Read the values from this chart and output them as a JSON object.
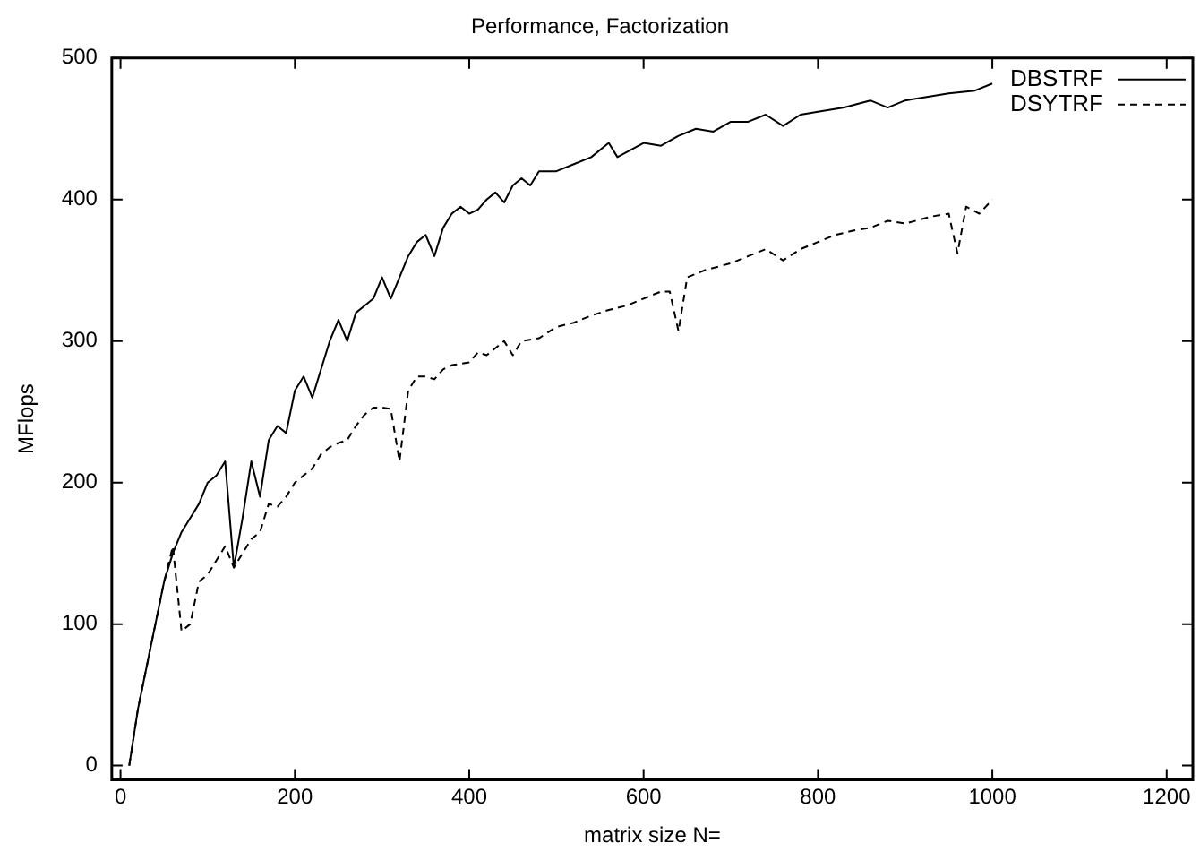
{
  "chart_data": {
    "type": "line",
    "title": "Performance, Factorization",
    "xlabel": "matrix size N=",
    "ylabel": "MFlops",
    "xlim": [
      -10,
      1230
    ],
    "xticks": [
      0,
      200,
      400,
      600,
      800,
      1000,
      1200
    ],
    "ylim": [
      -10,
      500
    ],
    "yticks": [
      0,
      100,
      200,
      300,
      400,
      500
    ],
    "grid": false,
    "legend": "top right",
    "marker": "none",
    "series": [
      {
        "name": "DBSTRF",
        "color": "#000000",
        "line_style": "solid",
        "x": [
          10,
          20,
          30,
          40,
          50,
          60,
          70,
          80,
          90,
          100,
          110,
          120,
          130,
          140,
          150,
          160,
          170,
          180,
          190,
          200,
          210,
          220,
          230,
          240,
          250,
          260,
          270,
          280,
          290,
          300,
          310,
          320,
          330,
          340,
          350,
          360,
          370,
          380,
          390,
          400,
          410,
          420,
          430,
          440,
          450,
          460,
          470,
          480,
          500,
          520,
          540,
          560,
          570,
          600,
          620,
          640,
          660,
          680,
          700,
          720,
          740,
          760,
          780,
          800,
          830,
          860,
          880,
          900,
          920,
          950,
          980,
          1000
        ],
        "values": [
          0,
          40,
          70,
          100,
          130,
          150,
          165,
          175,
          185,
          200,
          205,
          215,
          140,
          175,
          215,
          190,
          230,
          240,
          235,
          265,
          275,
          260,
          280,
          300,
          315,
          300,
          320,
          325,
          330,
          345,
          330,
          345,
          360,
          370,
          375,
          360,
          380,
          390,
          395,
          390,
          393,
          400,
          405,
          398,
          410,
          415,
          410,
          420,
          420,
          425,
          430,
          440,
          430,
          440,
          438,
          445,
          450,
          448,
          455,
          455,
          460,
          452,
          460,
          462,
          465,
          470,
          465,
          470,
          472,
          475,
          477,
          482
        ]
      },
      {
        "name": "DSYTRF",
        "color": "#000000",
        "line_style": "dashed",
        "x": [
          10,
          20,
          30,
          40,
          50,
          60,
          70,
          80,
          90,
          100,
          110,
          120,
          130,
          140,
          150,
          160,
          170,
          180,
          190,
          200,
          210,
          220,
          230,
          240,
          250,
          260,
          270,
          280,
          290,
          300,
          310,
          320,
          330,
          340,
          350,
          360,
          370,
          380,
          400,
          410,
          420,
          440,
          450,
          460,
          480,
          500,
          520,
          540,
          560,
          580,
          600,
          620,
          630,
          640,
          650,
          670,
          700,
          720,
          740,
          760,
          780,
          800,
          820,
          840,
          860,
          880,
          900,
          930,
          950,
          960,
          970,
          985,
          1000
        ],
        "values": [
          0,
          40,
          70,
          100,
          130,
          155,
          95,
          100,
          130,
          135,
          145,
          155,
          140,
          150,
          160,
          165,
          185,
          183,
          190,
          200,
          205,
          210,
          220,
          225,
          228,
          230,
          240,
          248,
          253,
          253,
          252,
          215,
          265,
          275,
          275,
          273,
          280,
          283,
          285,
          292,
          290,
          300,
          290,
          300,
          302,
          310,
          313,
          318,
          322,
          325,
          330,
          335,
          335,
          307,
          345,
          350,
          355,
          360,
          365,
          357,
          365,
          370,
          375,
          378,
          380,
          385,
          383,
          388,
          390,
          362,
          395,
          390,
          400
        ]
      }
    ]
  }
}
